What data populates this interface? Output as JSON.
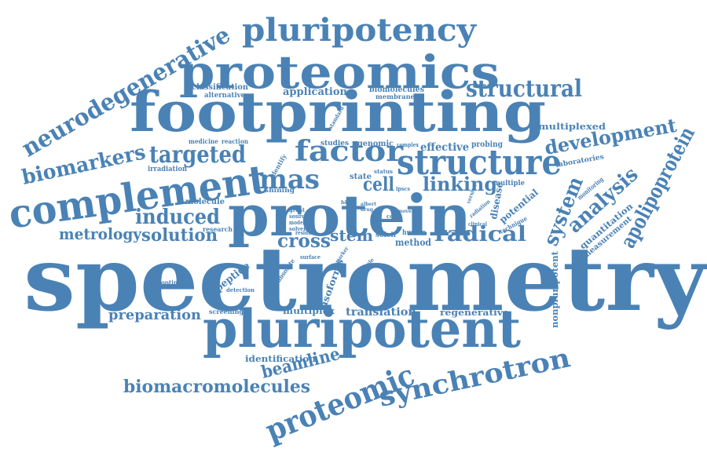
{
  "colors": {
    "word": "#4a82b5",
    "background": "#ffffff"
  },
  "words": [
    "spectrometry",
    "protein",
    "pluripotent",
    "footprinting",
    "proteomics",
    "complement",
    "structure",
    "pluripotency",
    "neurodegenerative",
    "synchrotron",
    "proteomic",
    "structural",
    "factor",
    "targeted",
    "biomarkers",
    "development",
    "apolipoprotein",
    "system",
    "analysis",
    "induced",
    "solution",
    "metrology",
    "radical",
    "linking",
    "mas",
    "cell",
    "cross",
    "stem",
    "biomacromolecules",
    "beamline",
    "preparation",
    "translation",
    "regenerative",
    "nonpluripotent",
    "multiplex",
    "identification",
    "isoforms",
    "peptide",
    "quantitation",
    "measurement",
    "potential",
    "disease",
    "multiplexed",
    "application",
    "biomolecules",
    "membrane",
    "classification",
    "alternative",
    "molecule",
    "shining",
    "research",
    "irradiation",
    "medicine",
    "reaction",
    "studies",
    "genomic",
    "effective",
    "probing",
    "complex",
    "standard",
    "identify",
    "state",
    "status",
    "ipscs",
    "multiple",
    "version",
    "radiation",
    "technique",
    "clinical",
    "laboratories",
    "monitoring",
    "human",
    "method",
    "soleil",
    "great",
    "source",
    "model",
    "solvent",
    "residue",
    "albert",
    "drug",
    "cost",
    "novel",
    "bio",
    "surface",
    "marker",
    "absolute",
    "sample",
    "optimized",
    "detection",
    "screening"
  ]
}
